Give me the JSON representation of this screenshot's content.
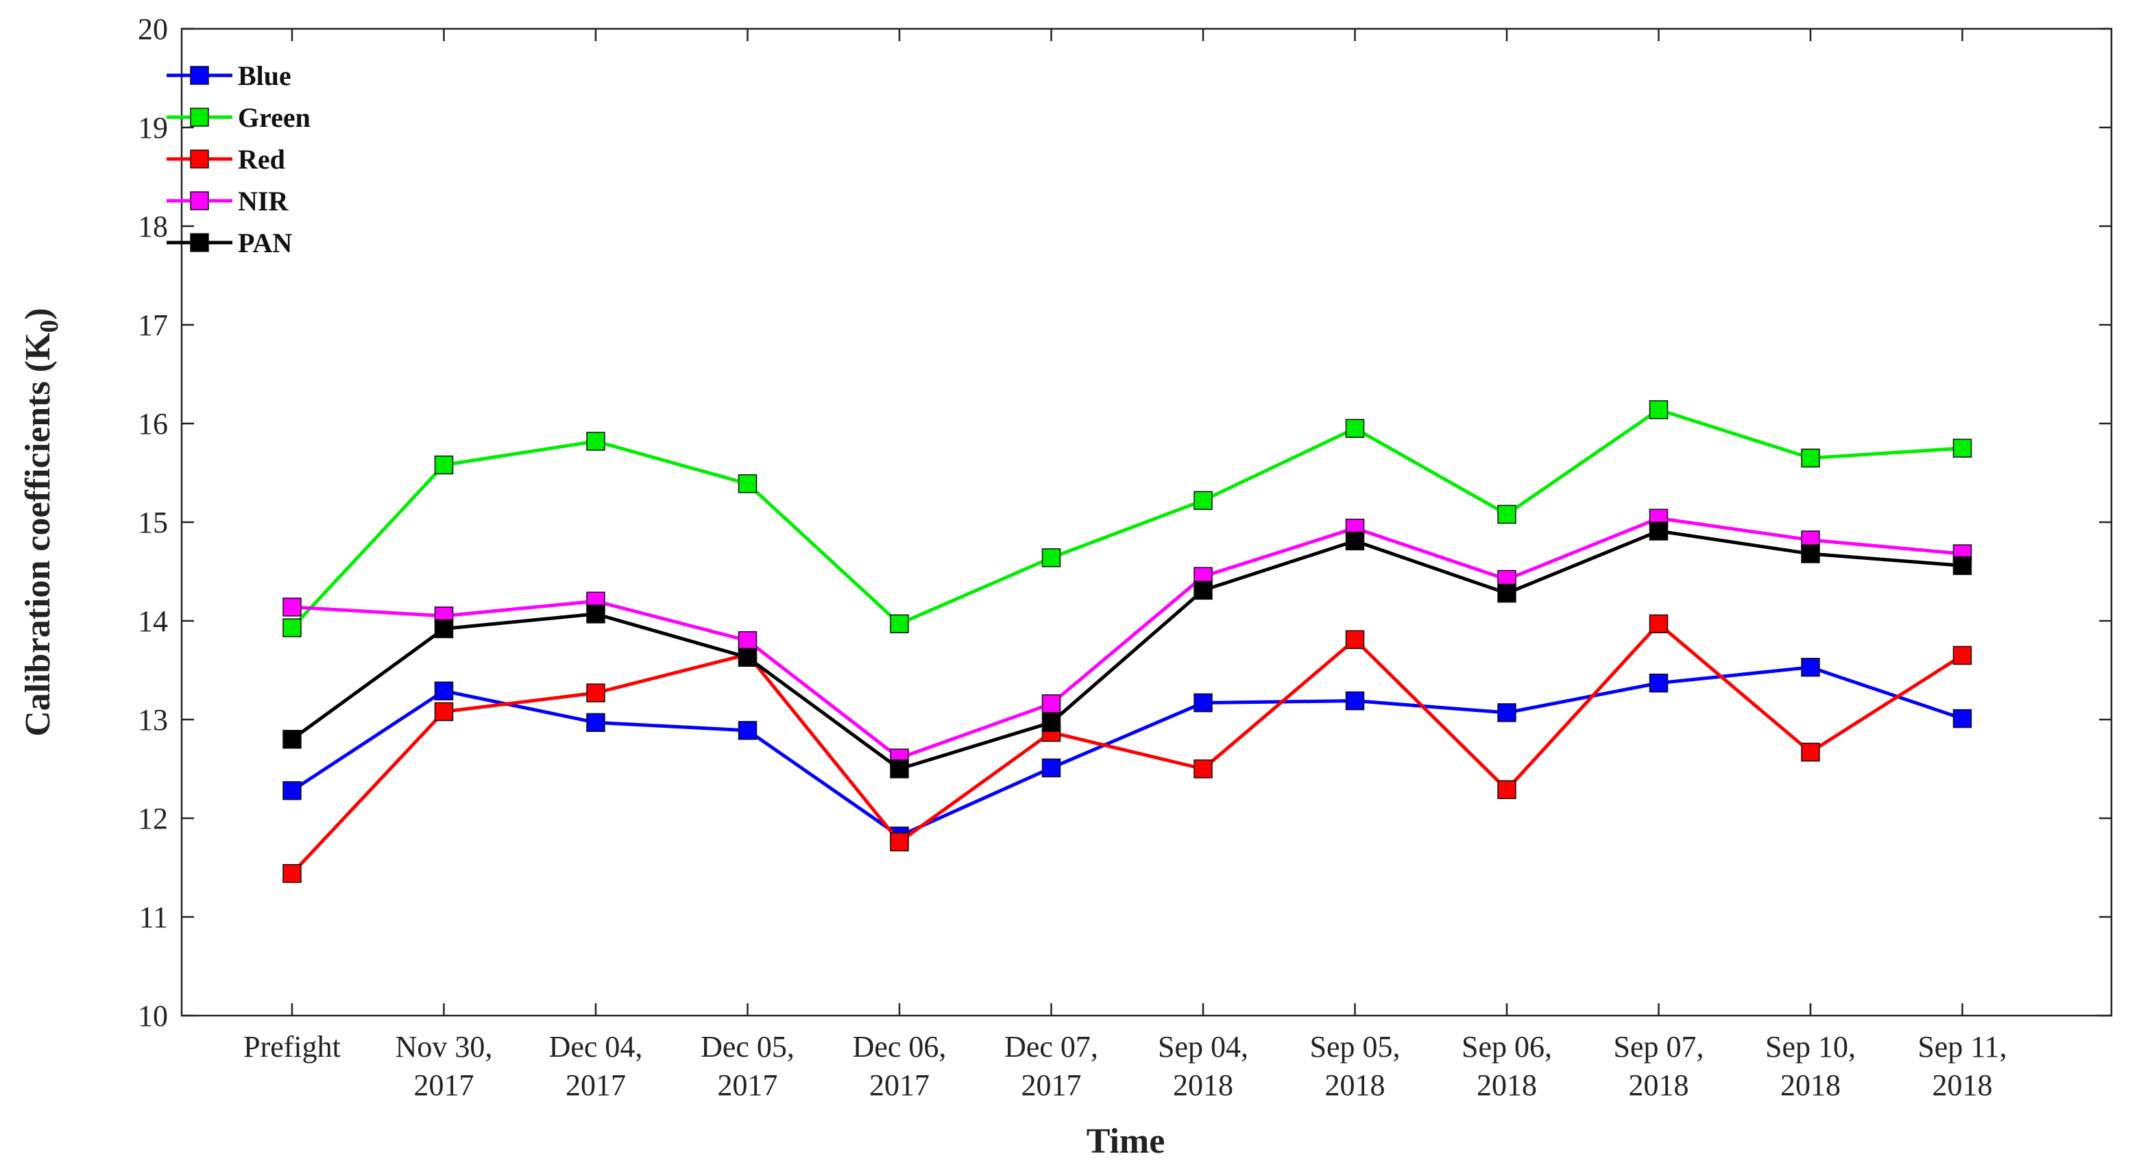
{
  "chart_data": {
    "type": "line",
    "title": "",
    "xlabel": "Time",
    "ylabel": "Calibration coefficients (K",
    "ylabel_subscript": "0",
    "ylabel_suffix": ")",
    "ylim": [
      10,
      20
    ],
    "yticks": [
      10,
      11,
      12,
      13,
      14,
      15,
      16,
      17,
      18,
      19,
      20
    ],
    "grid": false,
    "legend_position": "top-left",
    "categories": [
      {
        "line1": "Prefight",
        "line2": ""
      },
      {
        "line1": "Nov 30,",
        "line2": "2017"
      },
      {
        "line1": "Dec 04,",
        "line2": "2017"
      },
      {
        "line1": "Dec 05,",
        "line2": "2017"
      },
      {
        "line1": "Dec 06,",
        "line2": "2017"
      },
      {
        "line1": "Dec 07,",
        "line2": "2017"
      },
      {
        "line1": "Sep 04,",
        "line2": "2018"
      },
      {
        "line1": "Sep 05,",
        "line2": "2018"
      },
      {
        "line1": "Sep 06,",
        "line2": "2018"
      },
      {
        "line1": "Sep 07,",
        "line2": "2018"
      },
      {
        "line1": "Sep 10,",
        "line2": "2018"
      },
      {
        "line1": "Sep 11,",
        "line2": "2018"
      }
    ],
    "series": [
      {
        "name": "Blue",
        "color": "#0000ff",
        "values": [
          12.28,
          13.29,
          12.97,
          12.89,
          11.82,
          12.51,
          13.17,
          13.19,
          13.07,
          13.37,
          13.53,
          13.01
        ]
      },
      {
        "name": "Green",
        "color": "#00ee00",
        "values": [
          13.93,
          15.58,
          15.82,
          15.39,
          13.97,
          14.64,
          15.22,
          15.95,
          15.08,
          16.14,
          15.65,
          15.75
        ]
      },
      {
        "name": "Red",
        "color": "#ff0000",
        "values": [
          11.44,
          13.08,
          13.27,
          13.66,
          11.76,
          12.87,
          12.5,
          13.81,
          12.29,
          13.97,
          12.67,
          13.65
        ]
      },
      {
        "name": "NIR",
        "color": "#ff00ff",
        "values": [
          14.14,
          14.05,
          14.2,
          13.8,
          12.61,
          13.16,
          14.45,
          14.94,
          14.42,
          15.04,
          14.82,
          14.68
        ]
      },
      {
        "name": "PAN",
        "color": "#000000",
        "values": [
          12.8,
          13.92,
          14.07,
          13.63,
          12.5,
          12.97,
          14.31,
          14.81,
          14.28,
          14.91,
          14.68,
          14.56
        ]
      }
    ]
  }
}
